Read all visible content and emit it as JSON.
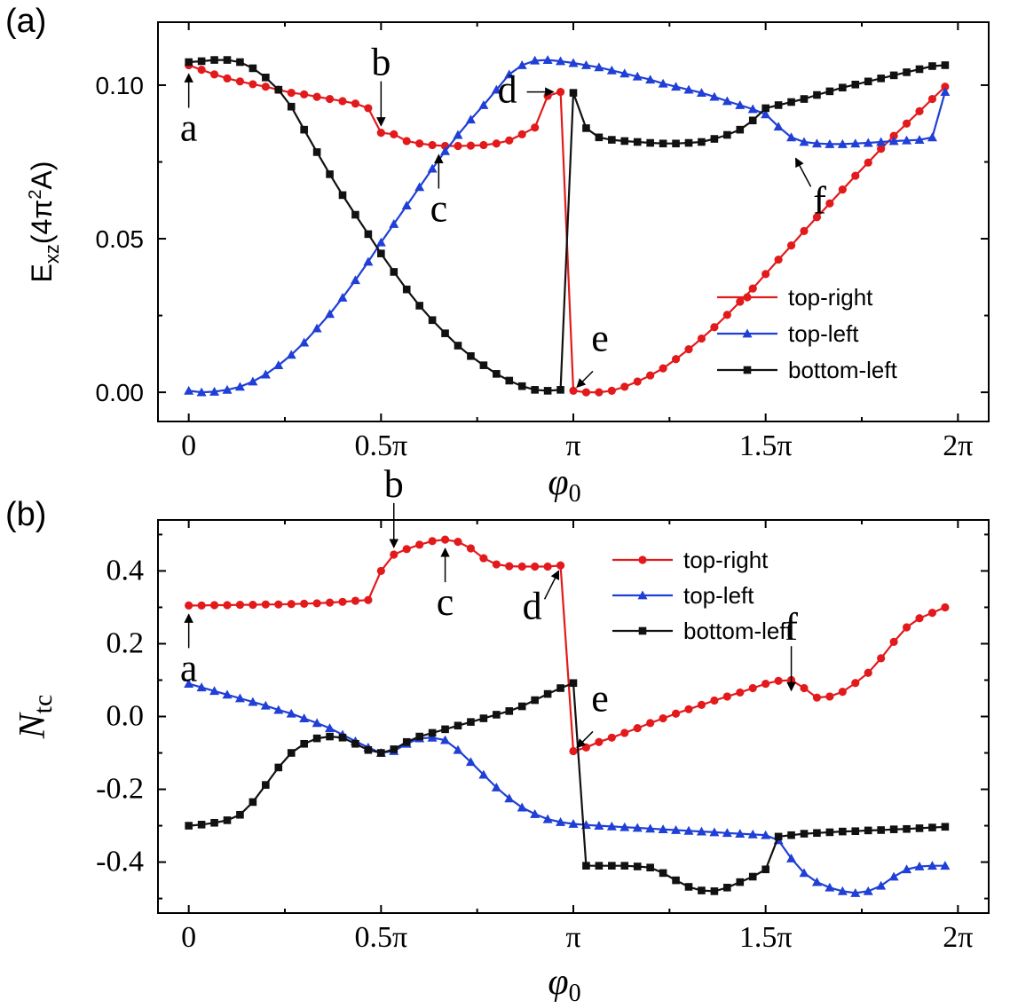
{
  "figure": {
    "panels": [
      "(a)",
      "(b)"
    ]
  },
  "chart_data": [
    {
      "type": "line",
      "panel_label": "(a)",
      "title": "",
      "xlabel": "φ",
      "xlabel_sub": "0",
      "ylabel": "E",
      "ylabel_sub": "xz",
      "ylabel_rest": "(4π",
      "ylabel_sup": "2",
      "ylabel_end": "A)",
      "xlim": [
        -0.08,
        2.08
      ],
      "ylim": [
        -0.0095,
        0.1205
      ],
      "xticks": [
        0,
        0.5,
        1,
        1.5,
        2
      ],
      "xtick_labels": [
        "0",
        "0.5π",
        "π",
        "1.5π",
        "2π"
      ],
      "yticks": [
        0,
        0.05,
        0.1
      ],
      "ytick_labels": [
        "0.00",
        "0.05",
        "0.10"
      ],
      "legend_position": "right",
      "legend": [
        "top-right",
        "top-left",
        "bottom-left"
      ],
      "series": [
        {
          "name": "top-right",
          "color": "#e31a1c",
          "marker": "circle",
          "x": [
            0,
            0.03333,
            0.06667,
            0.1,
            0.13333,
            0.16667,
            0.2,
            0.23333,
            0.26667,
            0.3,
            0.33333,
            0.36667,
            0.4,
            0.43333,
            0.46667,
            0.5,
            0.53333,
            0.56667,
            0.6,
            0.63333,
            0.66667,
            0.7,
            0.73333,
            0.76667,
            0.8,
            0.83333,
            0.86667,
            0.9,
            0.93333,
            0.96667,
            1.0,
            1.03333,
            1.06667,
            1.1,
            1.13333,
            1.16667,
            1.2,
            1.23333,
            1.26667,
            1.3,
            1.33333,
            1.36667,
            1.4,
            1.43333,
            1.46667,
            1.5,
            1.53333,
            1.56667,
            1.6,
            1.63333,
            1.66667,
            1.7,
            1.73333,
            1.76667,
            1.8,
            1.83333,
            1.86667,
            1.9,
            1.93333,
            1.96667
          ],
          "values": [
            0.1065,
            0.105,
            0.1035,
            0.1022,
            0.1012,
            0.1003,
            0.0995,
            0.0985,
            0.0975,
            0.097,
            0.0962,
            0.0955,
            0.0948,
            0.094,
            0.0925,
            0.0845,
            0.084,
            0.0818,
            0.081,
            0.0805,
            0.0802,
            0.0802,
            0.0803,
            0.0805,
            0.081,
            0.082,
            0.084,
            0.0862,
            0.0965,
            0.0978,
            0.0005,
            0.0,
            0.0,
            0.0005,
            0.0018,
            0.0035,
            0.0055,
            0.0078,
            0.0108,
            0.014,
            0.0175,
            0.0212,
            0.0252,
            0.0295,
            0.0338,
            0.0385,
            0.0432,
            0.0478,
            0.0525,
            0.057,
            0.0615,
            0.066,
            0.0705,
            0.0748,
            0.0793,
            0.0835,
            0.0875,
            0.0915,
            0.0955,
            0.0995
          ]
        },
        {
          "name": "top-left",
          "color": "#1f3fd6",
          "marker": "triangle",
          "x": [
            0,
            0.03333,
            0.06667,
            0.1,
            0.13333,
            0.16667,
            0.2,
            0.23333,
            0.26667,
            0.3,
            0.33333,
            0.36667,
            0.4,
            0.43333,
            0.46667,
            0.5,
            0.53333,
            0.56667,
            0.6,
            0.63333,
            0.66667,
            0.7,
            0.73333,
            0.76667,
            0.8,
            0.83333,
            0.86667,
            0.9,
            0.93333,
            0.96667,
            1.0,
            1.03333,
            1.06667,
            1.1,
            1.13333,
            1.16667,
            1.2,
            1.23333,
            1.26667,
            1.3,
            1.33333,
            1.36667,
            1.4,
            1.43333,
            1.46667,
            1.5,
            1.53333,
            1.56667,
            1.6,
            1.63333,
            1.66667,
            1.7,
            1.73333,
            1.76667,
            1.8,
            1.83333,
            1.86667,
            1.9,
            1.93333,
            1.96667
          ],
          "values": [
            0.0005,
            0.0,
            0.0002,
            0.0008,
            0.0018,
            0.0035,
            0.0058,
            0.0088,
            0.0122,
            0.0162,
            0.0208,
            0.0255,
            0.0308,
            0.0365,
            0.0425,
            0.0488,
            0.0548,
            0.0608,
            0.0668,
            0.0728,
            0.0785,
            0.0838,
            0.0888,
            0.0935,
            0.0985,
            0.1035,
            0.1065,
            0.108,
            0.1082,
            0.1078,
            0.1072,
            0.1065,
            0.1058,
            0.1048,
            0.1038,
            0.1028,
            0.1018,
            0.1005,
            0.0995,
            0.0985,
            0.0975,
            0.0962,
            0.0948,
            0.0935,
            0.0922,
            0.0905,
            0.0865,
            0.083,
            0.0815,
            0.081,
            0.0808,
            0.0808,
            0.081,
            0.0812,
            0.0815,
            0.0818,
            0.082,
            0.0822,
            0.083,
            0.0978
          ]
        },
        {
          "name": "bottom-left",
          "color": "#111111",
          "marker": "square",
          "x": [
            0,
            0.03333,
            0.06667,
            0.1,
            0.13333,
            0.16667,
            0.2,
            0.23333,
            0.26667,
            0.3,
            0.33333,
            0.36667,
            0.4,
            0.43333,
            0.46667,
            0.5,
            0.53333,
            0.56667,
            0.6,
            0.63333,
            0.66667,
            0.7,
            0.73333,
            0.76667,
            0.8,
            0.83333,
            0.86667,
            0.9,
            0.93333,
            0.96667,
            1.0,
            1.03333,
            1.06667,
            1.1,
            1.13333,
            1.16667,
            1.2,
            1.23333,
            1.26667,
            1.3,
            1.33333,
            1.36667,
            1.4,
            1.43333,
            1.46667,
            1.5,
            1.53333,
            1.56667,
            1.6,
            1.63333,
            1.66667,
            1.7,
            1.73333,
            1.76667,
            1.8,
            1.83333,
            1.86667,
            1.9,
            1.93333,
            1.96667
          ],
          "values": [
            0.1075,
            0.1078,
            0.1082,
            0.1082,
            0.1075,
            0.1055,
            0.1025,
            0.0985,
            0.093,
            0.0855,
            0.0782,
            0.071,
            0.0642,
            0.0578,
            0.0515,
            0.0452,
            0.0392,
            0.0335,
            0.0282,
            0.0235,
            0.0192,
            0.0152,
            0.0118,
            0.0088,
            0.006,
            0.0038,
            0.002,
            0.0008,
            0.0005,
            0.0008,
            0.0975,
            0.086,
            0.083,
            0.0822,
            0.0818,
            0.0815,
            0.0812,
            0.081,
            0.081,
            0.0812,
            0.0815,
            0.0825,
            0.0838,
            0.0855,
            0.0885,
            0.0925,
            0.0935,
            0.0945,
            0.0955,
            0.0968,
            0.098,
            0.0992,
            0.1002,
            0.1012,
            0.1022,
            0.1032,
            0.1042,
            0.1052,
            0.1062,
            0.1065
          ]
        }
      ],
      "annotations": [
        {
          "label": "a",
          "x": 0.0,
          "y": 0.1065,
          "dir": "up"
        },
        {
          "label": "b",
          "x": 0.5,
          "y": 0.0845,
          "dir": "down"
        },
        {
          "label": "c",
          "x": 0.65,
          "y": 0.0802,
          "dir": "up"
        },
        {
          "label": "d",
          "x": 0.9667,
          "y": 0.0978,
          "dir": "right"
        },
        {
          "label": "e",
          "x": 1.0,
          "y": 0.0005,
          "dir": "left"
        },
        {
          "label": "f",
          "x": 1.5667,
          "y": 0.0785,
          "dir": "up-left"
        }
      ]
    },
    {
      "type": "line",
      "panel_label": "(b)",
      "title": "",
      "xlabel": "φ",
      "xlabel_sub": "0",
      "ylabel": "N",
      "ylabel_sub": "tc",
      "xlim": [
        -0.08,
        2.08
      ],
      "ylim": [
        -0.54,
        0.54
      ],
      "xticks": [
        0,
        0.5,
        1,
        1.5,
        2
      ],
      "xtick_labels": [
        "0",
        "0.5π",
        "π",
        "1.5π",
        "2π"
      ],
      "yticks": [
        -0.4,
        -0.2,
        0,
        0.2,
        0.4
      ],
      "ytick_labels": [
        "-0.4",
        "-0.2",
        "0.0",
        "0.2",
        "0.4"
      ],
      "legend_position": "top-right",
      "legend": [
        "top-right",
        "top-left",
        "bottom-left"
      ],
      "series": [
        {
          "name": "top-right",
          "color": "#e31a1c",
          "marker": "circle",
          "x": [
            0,
            0.03333,
            0.06667,
            0.1,
            0.13333,
            0.16667,
            0.2,
            0.23333,
            0.26667,
            0.3,
            0.33333,
            0.36667,
            0.4,
            0.43333,
            0.46667,
            0.5,
            0.53333,
            0.56667,
            0.6,
            0.63333,
            0.66667,
            0.7,
            0.73333,
            0.76667,
            0.8,
            0.83333,
            0.86667,
            0.9,
            0.93333,
            0.96667,
            1.0,
            1.03333,
            1.06667,
            1.1,
            1.13333,
            1.16667,
            1.2,
            1.23333,
            1.26667,
            1.3,
            1.33333,
            1.36667,
            1.4,
            1.43333,
            1.46667,
            1.5,
            1.53333,
            1.56667,
            1.6,
            1.63333,
            1.66667,
            1.7,
            1.73333,
            1.76667,
            1.8,
            1.83333,
            1.86667,
            1.9,
            1.93333,
            1.96667
          ],
          "values": [
            0.305,
            0.305,
            0.306,
            0.306,
            0.307,
            0.307,
            0.308,
            0.308,
            0.309,
            0.31,
            0.311,
            0.313,
            0.315,
            0.318,
            0.32,
            0.4,
            0.445,
            0.46,
            0.472,
            0.482,
            0.486,
            0.48,
            0.462,
            0.435,
            0.418,
            0.413,
            0.412,
            0.412,
            0.412,
            0.415,
            -0.095,
            -0.085,
            -0.07,
            -0.058,
            -0.045,
            -0.032,
            -0.018,
            -0.005,
            0.008,
            0.02,
            0.032,
            0.044,
            0.055,
            0.066,
            0.078,
            0.09,
            0.098,
            0.1,
            0.078,
            0.052,
            0.055,
            0.068,
            0.092,
            0.12,
            0.16,
            0.205,
            0.245,
            0.27,
            0.285,
            0.3
          ]
        },
        {
          "name": "top-left",
          "color": "#1f3fd6",
          "marker": "triangle",
          "x": [
            0,
            0.03333,
            0.06667,
            0.1,
            0.13333,
            0.16667,
            0.2,
            0.23333,
            0.26667,
            0.3,
            0.33333,
            0.36667,
            0.4,
            0.43333,
            0.46667,
            0.5,
            0.53333,
            0.56667,
            0.6,
            0.63333,
            0.66667,
            0.7,
            0.73333,
            0.76667,
            0.8,
            0.83333,
            0.86667,
            0.9,
            0.93333,
            0.96667,
            1.0,
            1.03333,
            1.06667,
            1.1,
            1.13333,
            1.16667,
            1.2,
            1.23333,
            1.26667,
            1.3,
            1.33333,
            1.36667,
            1.4,
            1.43333,
            1.46667,
            1.5,
            1.53333,
            1.56667,
            1.6,
            1.63333,
            1.66667,
            1.7,
            1.73333,
            1.76667,
            1.8,
            1.83333,
            1.86667,
            1.9,
            1.93333,
            1.96667
          ],
          "values": [
            0.09,
            0.08,
            0.07,
            0.06,
            0.05,
            0.04,
            0.03,
            0.018,
            0.008,
            -0.005,
            -0.018,
            -0.032,
            -0.05,
            -0.068,
            -0.085,
            -0.1,
            -0.095,
            -0.075,
            -0.06,
            -0.058,
            -0.065,
            -0.092,
            -0.125,
            -0.16,
            -0.195,
            -0.225,
            -0.25,
            -0.268,
            -0.282,
            -0.29,
            -0.295,
            -0.298,
            -0.3,
            -0.302,
            -0.304,
            -0.306,
            -0.308,
            -0.31,
            -0.312,
            -0.314,
            -0.316,
            -0.318,
            -0.32,
            -0.322,
            -0.324,
            -0.326,
            -0.34,
            -0.39,
            -0.43,
            -0.455,
            -0.47,
            -0.48,
            -0.485,
            -0.48,
            -0.465,
            -0.44,
            -0.42,
            -0.412,
            -0.41,
            -0.41
          ]
        },
        {
          "name": "bottom-left",
          "color": "#111111",
          "marker": "square",
          "x": [
            0,
            0.03333,
            0.06667,
            0.1,
            0.13333,
            0.16667,
            0.2,
            0.23333,
            0.26667,
            0.3,
            0.33333,
            0.36667,
            0.4,
            0.43333,
            0.46667,
            0.5,
            0.53333,
            0.56667,
            0.6,
            0.63333,
            0.66667,
            0.7,
            0.73333,
            0.76667,
            0.8,
            0.83333,
            0.86667,
            0.9,
            0.93333,
            0.96667,
            1.0,
            1.03333,
            1.06667,
            1.1,
            1.13333,
            1.16667,
            1.2,
            1.23333,
            1.26667,
            1.3,
            1.33333,
            1.36667,
            1.4,
            1.43333,
            1.46667,
            1.5,
            1.53333,
            1.56667,
            1.6,
            1.63333,
            1.66667,
            1.7,
            1.73333,
            1.76667,
            1.8,
            1.83333,
            1.86667,
            1.9,
            1.93333,
            1.96667
          ],
          "values": [
            -0.3,
            -0.297,
            -0.292,
            -0.285,
            -0.27,
            -0.235,
            -0.188,
            -0.14,
            -0.1,
            -0.075,
            -0.06,
            -0.055,
            -0.058,
            -0.075,
            -0.092,
            -0.1,
            -0.09,
            -0.07,
            -0.055,
            -0.045,
            -0.035,
            -0.025,
            -0.015,
            -0.005,
            0.005,
            0.015,
            0.028,
            0.045,
            0.062,
            0.078,
            0.092,
            -0.41,
            -0.41,
            -0.41,
            -0.41,
            -0.412,
            -0.415,
            -0.43,
            -0.45,
            -0.468,
            -0.478,
            -0.48,
            -0.47,
            -0.455,
            -0.44,
            -0.42,
            -0.33,
            -0.326,
            -0.322,
            -0.32,
            -0.318,
            -0.316,
            -0.315,
            -0.313,
            -0.312,
            -0.31,
            -0.309,
            -0.307,
            -0.305,
            -0.303
          ]
        }
      ],
      "annotations": [
        {
          "label": "a",
          "x": 0.0,
          "y": 0.305,
          "dir": "up"
        },
        {
          "label": "b",
          "x": 0.5333,
          "y": 0.445,
          "dir": "down"
        },
        {
          "label": "c",
          "x": 0.6667,
          "y": 0.486,
          "dir": "up"
        },
        {
          "label": "d",
          "x": 0.9667,
          "y": 0.415,
          "dir": "down-right"
        },
        {
          "label": "e",
          "x": 1.0,
          "y": -0.095,
          "dir": "left"
        },
        {
          "label": "f",
          "x": 1.5667,
          "y": 0.052,
          "dir": "down"
        }
      ]
    }
  ]
}
